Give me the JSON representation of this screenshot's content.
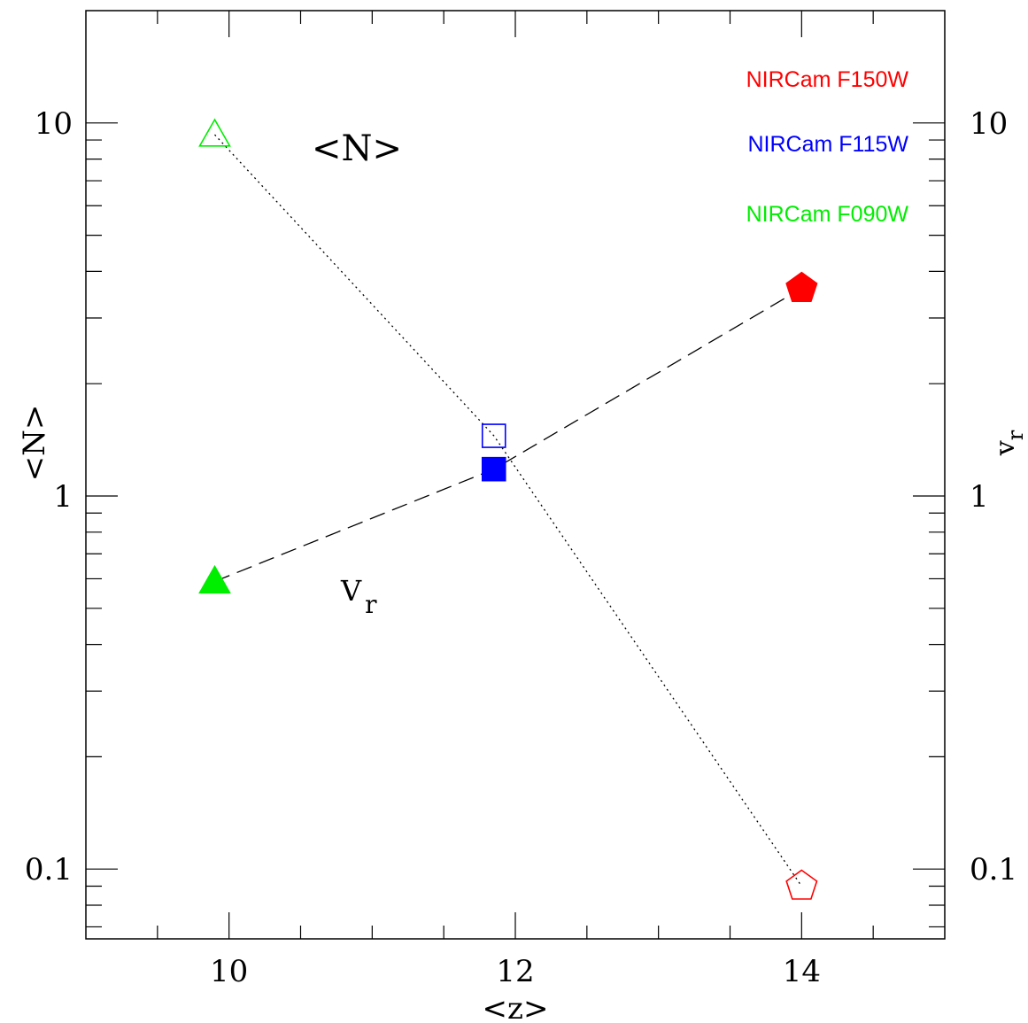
{
  "chart_data": {
    "type": "scatter",
    "xlabel": "<z>",
    "ylabel_left": "<N>",
    "ylabel_right_main": "v",
    "ylabel_right_sub": "r",
    "annotation_n": "<N>",
    "annotation_vr_main": "V",
    "annotation_vr_sub": "r",
    "xlim": [
      9,
      15
    ],
    "ylim": [
      0.065,
      20
    ],
    "yscale": "log",
    "x_ticks": [
      {
        "v": 10,
        "label": "10"
      },
      {
        "v": 12,
        "label": "12"
      },
      {
        "v": 14,
        "label": "14"
      }
    ],
    "y_ticks": [
      {
        "v": 0.1,
        "label": "0.1"
      },
      {
        "v": 1,
        "label": "1"
      },
      {
        "v": 10,
        "label": "10"
      }
    ],
    "legend": [
      {
        "label": "NIRCam F150W",
        "color": "#ff0000"
      },
      {
        "label": "NIRCam F115W",
        "color": "#0000ff"
      },
      {
        "label": "NIRCam F090W",
        "color": "#00ee00"
      }
    ],
    "series": [
      {
        "quantity": "N",
        "line_style": "dotted",
        "filled": false,
        "points": [
          {
            "filter": "F090W",
            "x": 9.9,
            "y": 9.3,
            "marker": "triangle",
            "color": "#00ee00"
          },
          {
            "filter": "F115W",
            "x": 11.85,
            "y": 1.45,
            "marker": "square",
            "color": "#0000ff"
          },
          {
            "filter": "F150W",
            "x": 14.0,
            "y": 0.09,
            "marker": "pentagon",
            "color": "#ff0000"
          }
        ]
      },
      {
        "quantity": "Vr",
        "line_style": "dashed",
        "filled": true,
        "points": [
          {
            "filter": "F090W",
            "x": 9.9,
            "y": 0.59,
            "marker": "triangle",
            "color": "#00ee00"
          },
          {
            "filter": "F115W",
            "x": 11.85,
            "y": 1.18,
            "marker": "square",
            "color": "#0000ff"
          },
          {
            "filter": "F150W",
            "x": 14.0,
            "y": 3.6,
            "marker": "pentagon",
            "color": "#ff0000"
          }
        ]
      }
    ]
  }
}
